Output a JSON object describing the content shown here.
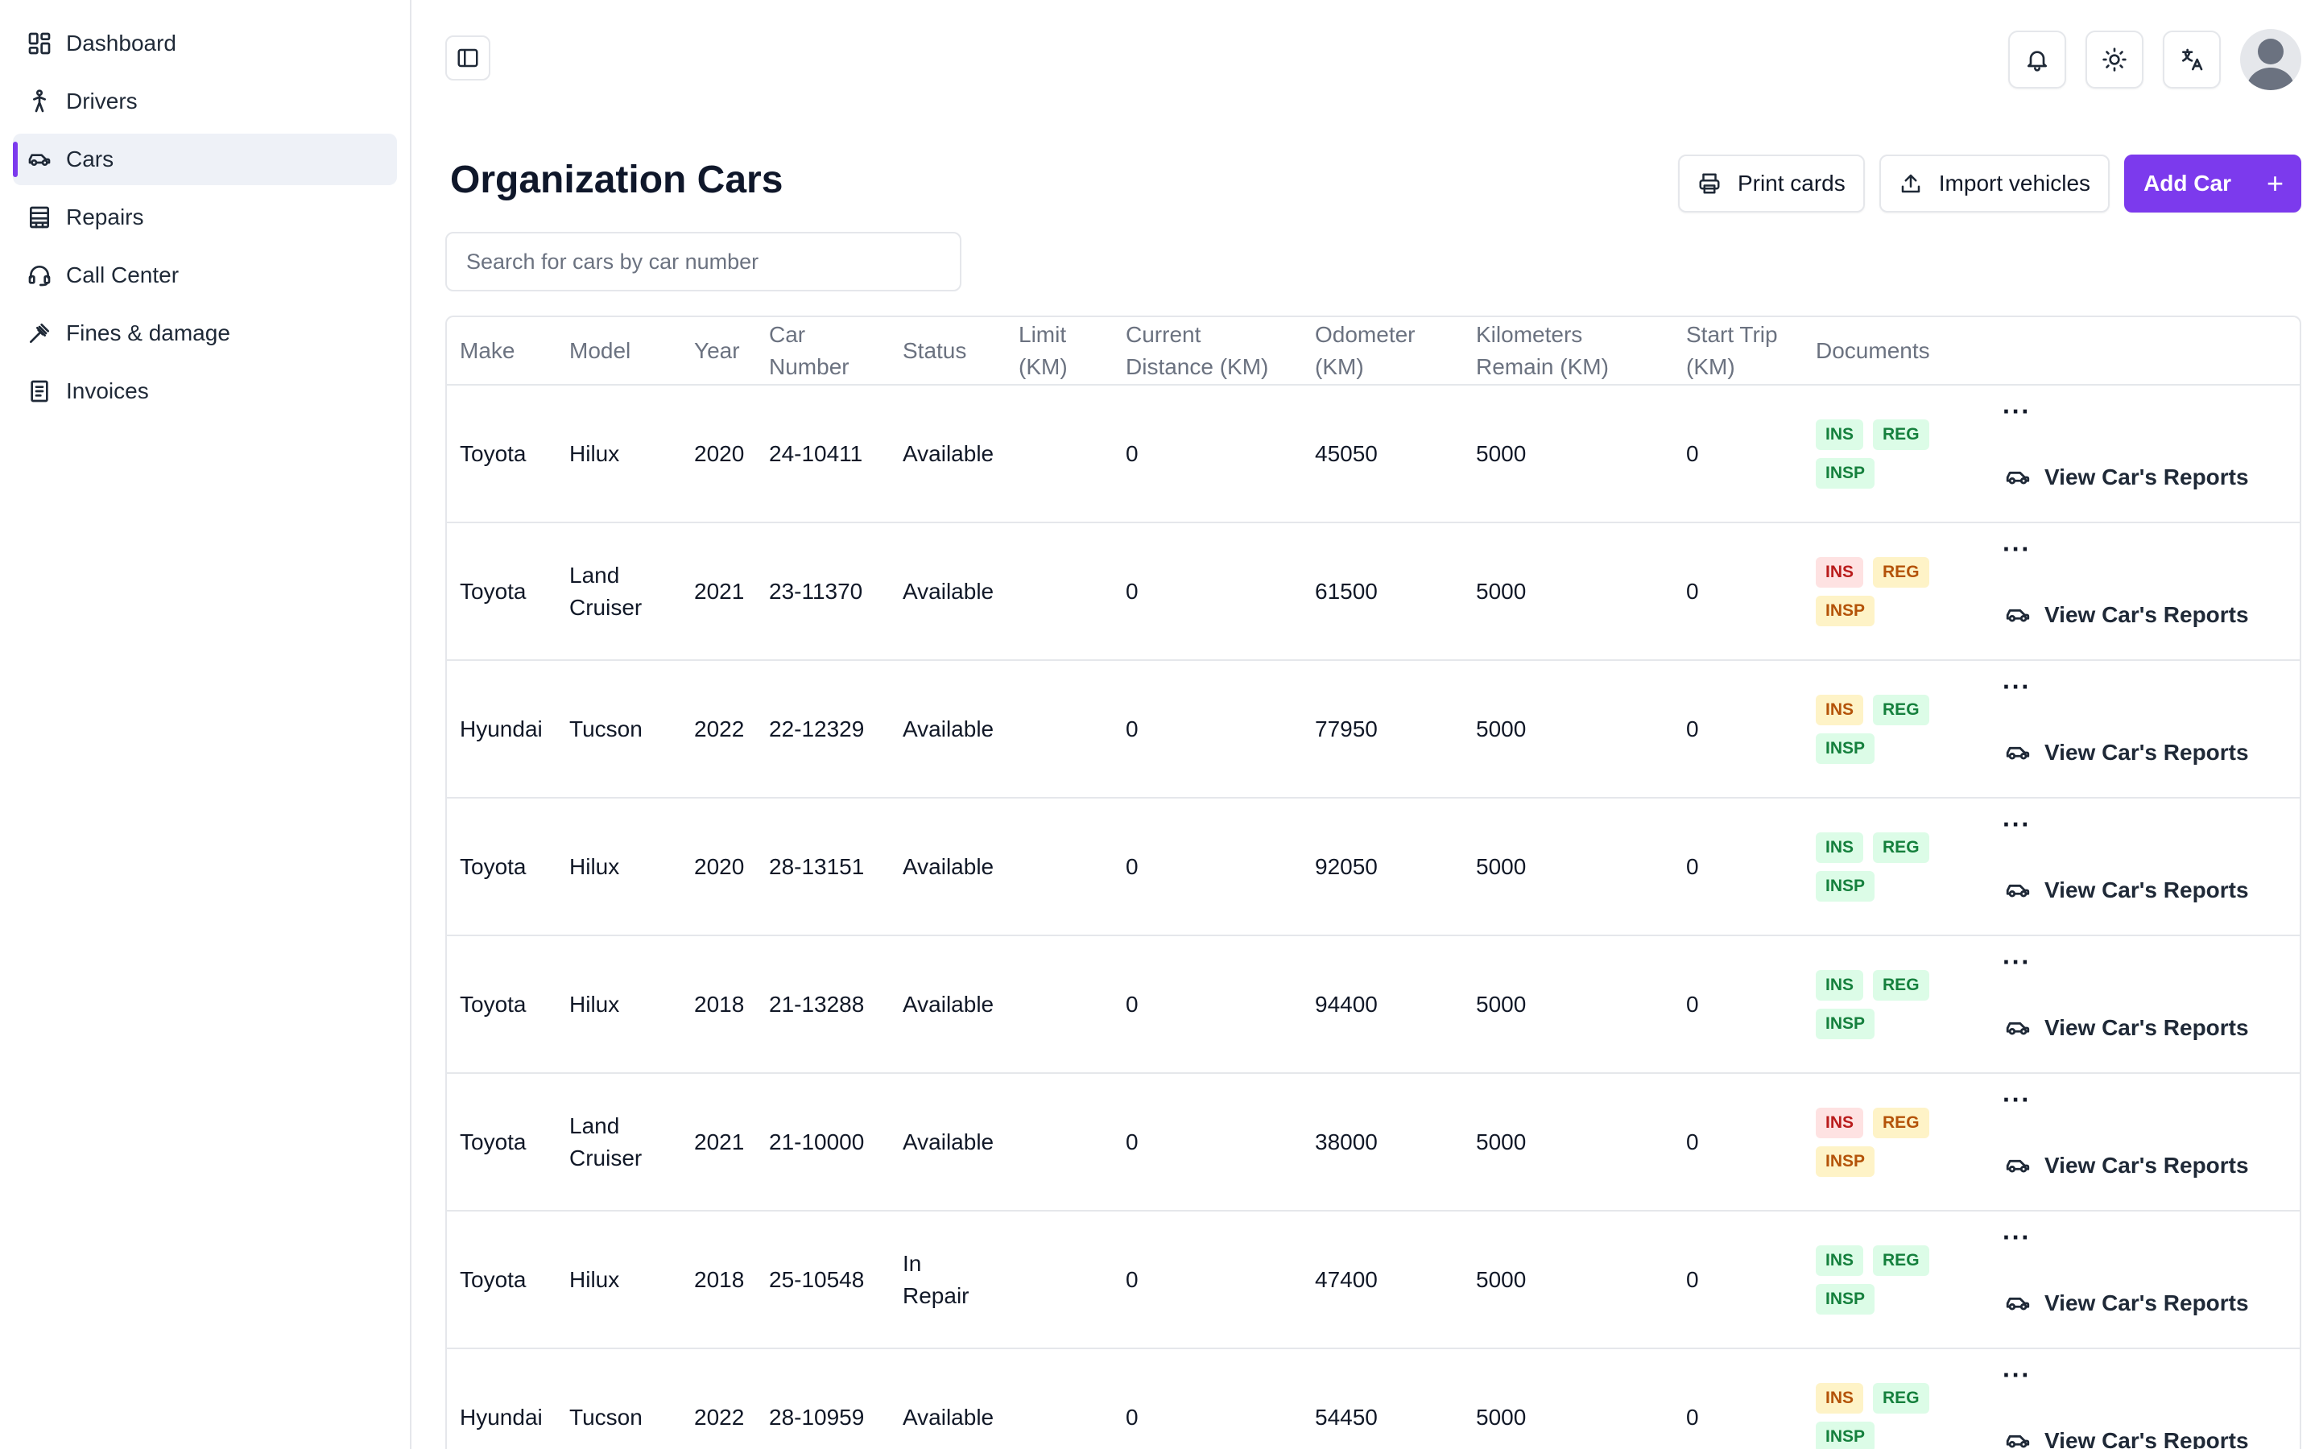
{
  "sidebar": {
    "items": [
      {
        "label": "Dashboard",
        "icon": "dashboard-icon"
      },
      {
        "label": "Drivers",
        "icon": "person-walking-icon"
      },
      {
        "label": "Cars",
        "icon": "car-icon",
        "active": true
      },
      {
        "label": "Repairs",
        "icon": "building-icon"
      },
      {
        "label": "Call Center",
        "icon": "headset-icon"
      },
      {
        "label": "Fines & damage",
        "icon": "gavel-icon"
      },
      {
        "label": "Invoices",
        "icon": "invoice-icon"
      }
    ]
  },
  "page": {
    "title": "Organization Cars",
    "print_label": "Print cards",
    "import_label": "Import vehicles",
    "add_label": "Add Car",
    "add_plus": "+",
    "search_placeholder": "Search for cars by car number"
  },
  "colors": {
    "accent": "#7c3aed",
    "badge_green": "#dcfce7",
    "badge_red": "#fee2e2",
    "badge_yellow": "#fef3c7"
  },
  "table": {
    "headers": [
      "Make",
      "Model",
      "Year",
      "Car Number",
      "Status",
      "Limit (KM)",
      "Current Distance (KM)",
      "Odometer (KM)",
      "Kilometers Remain (KM)",
      "Start Trip (KM)",
      "Documents",
      ""
    ],
    "more_label": "···",
    "report_label": "View Car's Reports",
    "rows": [
      {
        "make": "Toyota",
        "model": "Hilux",
        "year": "2020",
        "number": "24-10411",
        "status": "Available",
        "limit": "",
        "current": "0",
        "odometer": "45050",
        "remain": "5000",
        "start": "0",
        "docs": [
          {
            "label": "INS",
            "state": "green"
          },
          {
            "label": "REG",
            "state": "green"
          },
          {
            "label": "INSP",
            "state": "green"
          }
        ]
      },
      {
        "make": "Toyota",
        "model": "Land Cruiser",
        "year": "2021",
        "number": "23-11370",
        "status": "Available",
        "limit": "",
        "current": "0",
        "odometer": "61500",
        "remain": "5000",
        "start": "0",
        "docs": [
          {
            "label": "INS",
            "state": "red"
          },
          {
            "label": "REG",
            "state": "yellow"
          },
          {
            "label": "INSP",
            "state": "yellow"
          }
        ]
      },
      {
        "make": "Hyundai",
        "model": "Tucson",
        "year": "2022",
        "number": "22-12329",
        "status": "Available",
        "limit": "",
        "current": "0",
        "odometer": "77950",
        "remain": "5000",
        "start": "0",
        "docs": [
          {
            "label": "INS",
            "state": "yellow"
          },
          {
            "label": "REG",
            "state": "green"
          },
          {
            "label": "INSP",
            "state": "green"
          }
        ]
      },
      {
        "make": "Toyota",
        "model": "Hilux",
        "year": "2020",
        "number": "28-13151",
        "status": "Available",
        "limit": "",
        "current": "0",
        "odometer": "92050",
        "remain": "5000",
        "start": "0",
        "docs": [
          {
            "label": "INS",
            "state": "green"
          },
          {
            "label": "REG",
            "state": "green"
          },
          {
            "label": "INSP",
            "state": "green"
          }
        ]
      },
      {
        "make": "Toyota",
        "model": "Hilux",
        "year": "2018",
        "number": "21-13288",
        "status": "Available",
        "limit": "",
        "current": "0",
        "odometer": "94400",
        "remain": "5000",
        "start": "0",
        "docs": [
          {
            "label": "INS",
            "state": "green"
          },
          {
            "label": "REG",
            "state": "green"
          },
          {
            "label": "INSP",
            "state": "green"
          }
        ]
      },
      {
        "make": "Toyota",
        "model": "Land Cruiser",
        "year": "2021",
        "number": "21-10000",
        "status": "Available",
        "limit": "",
        "current": "0",
        "odometer": "38000",
        "remain": "5000",
        "start": "0",
        "docs": [
          {
            "label": "INS",
            "state": "red"
          },
          {
            "label": "REG",
            "state": "yellow"
          },
          {
            "label": "INSP",
            "state": "yellow"
          }
        ]
      },
      {
        "make": "Toyota",
        "model": "Hilux",
        "year": "2018",
        "number": "25-10548",
        "status": "In Repair",
        "limit": "",
        "current": "0",
        "odometer": "47400",
        "remain": "5000",
        "start": "0",
        "docs": [
          {
            "label": "INS",
            "state": "green"
          },
          {
            "label": "REG",
            "state": "green"
          },
          {
            "label": "INSP",
            "state": "green"
          }
        ]
      },
      {
        "make": "Hyundai",
        "model": "Tucson",
        "year": "2022",
        "number": "28-10959",
        "status": "Available",
        "limit": "",
        "current": "0",
        "odometer": "54450",
        "remain": "5000",
        "start": "0",
        "docs": [
          {
            "label": "INS",
            "state": "yellow"
          },
          {
            "label": "REG",
            "state": "green"
          },
          {
            "label": "INSP",
            "state": "green"
          }
        ]
      }
    ]
  }
}
